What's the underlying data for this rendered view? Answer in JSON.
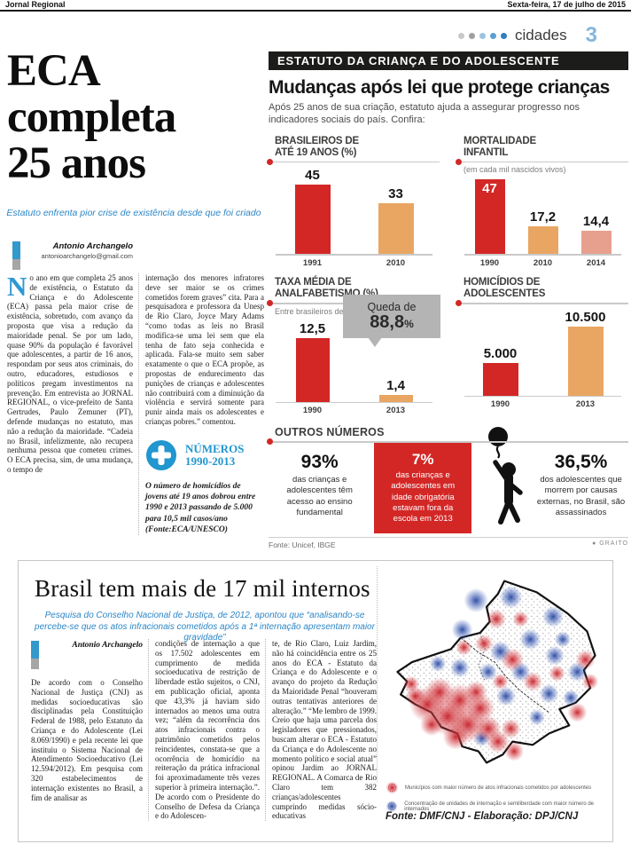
{
  "colors": {
    "red": "#d32726",
    "tan": "#e9a663",
    "salmon": "#e7a08d",
    "blue": "#2196cf",
    "deck_blue": "#2d86c6",
    "gray_callout": "#b5b4b4",
    "black_bar": "#1c1c1a"
  },
  "page": {
    "masthead": "Jornal Regional",
    "date": "Sexta-feira, 17 de julho de 2015",
    "section": "cidades",
    "page_number": "3"
  },
  "article1": {
    "headline_lines": [
      "ECA",
      "completa",
      "25 anos"
    ],
    "deck": "Estatuto enfrenta pior crise de existência desde que foi criado",
    "byline": "Antonio Archangelo",
    "email": "antonioarchangelo@gmail.com",
    "dropcap": "N",
    "col1": "o ano em que completa 25 anos de existência, o Estatuto da Criança e do Adolescente (ECA) passa pela maior crise de existência, sobretudo, com avanço da proposta que visa a redução da maioridade penal. Se por um lado, quase 90% da população é favorável que adolescentes, a partir de 16 anos, respondam por seus atos criminais, do outro, educadores, estudiosos e políticos pregam investimentos na prevenção. Em entrevista ao JORNAL REGIONAL, o vice-prefeito de Santa Gertrudes, Paulo Zemuner (PT), defende mudanças no estatuto, mas não a redução da maioridade. “Cadeia no Brasil, infelizmente, não recupera nenhuma pessoa que cometeu crimes. O ECA precisa, sim, de uma mudança, o tempo de",
    "col2": "internação dos menores infratores deve ser maior se os crimes cometidos forem graves” cita. Para a pesquisadora e professora da Unesp de Rio Claro, Joyce Mary Adams “como todas as leis no Brasil modifica-se uma lei sem que ela tenha de fato seja conhecida e aplicada. Fala-se muito sem saber exatamente o que o ECA propõe, as propostas de endurecimento das punições de crianças e adolescentes não contribuirá com a diminuição da violência e servirá somente para punir ainda mais os adolescentes e crianças pobres.” comentou.",
    "numbers_label": "NÚMEROS",
    "numbers_years": "1990-2013",
    "numbers_note": "O número de homicídios de jovens até 19 anos dobrou entre 1990 e 2013 passando de 5.000 para 10,5 mil casos/ano (Fonte:ECA/UNESCO)"
  },
  "infographic": {
    "kicker": "ESTATUTO DA CRIANÇA E DO ADOLESCENTE",
    "title": "Mudanças após lei que protege crianças",
    "subtitle": "Após 25 anos de sua criação, estatuto ajuda a assegurar progresso nos indicadores sociais do país. Confira:",
    "outros_title": "OUTROS NÚMEROS",
    "stats": [
      {
        "value": "93%",
        "text": "das crianças e adolescentes têm acesso ao ensino fundamental"
      },
      {
        "value": "7%",
        "text": "das crianças e adolescentes em idade obrigatória estavam fora da escola em 2013"
      },
      {
        "value": "36,5%",
        "text": "dos adolescentes que morrem por causas externas, no Brasil, são assassinados"
      }
    ],
    "source": "Fonte: Unicef, IBGE",
    "credit": "GRAITO"
  },
  "chart_data": [
    {
      "type": "bar",
      "title": "BRASILEIROS DE\nATÉ 19 ANOS (%)",
      "note": "",
      "categories": [
        "1991",
        "2010"
      ],
      "values": [
        45,
        33
      ],
      "labels": [
        "45",
        "33"
      ],
      "bar_colors": [
        "red",
        "tan"
      ],
      "label_inside": [
        false,
        false
      ],
      "ylim": [
        0,
        45
      ],
      "grid": false,
      "legend": "none"
    },
    {
      "type": "bar",
      "title": "MORTALIDADE\nINFANTIL",
      "note": "(em cada mil nascidos vivos)",
      "categories": [
        "1990",
        "2010",
        "2014"
      ],
      "values": [
        47,
        17.2,
        14.4
      ],
      "labels": [
        "47",
        "17,2",
        "14,4"
      ],
      "bar_colors": [
        "red",
        "tan",
        "salmon"
      ],
      "label_inside": [
        true,
        false,
        false
      ],
      "ylim": [
        0,
        47
      ],
      "grid": false,
      "legend": "none"
    },
    {
      "type": "bar",
      "title": "TAXA MÉDIA DE\nANALFABETISMO (%)",
      "note": "Entre brasileiros de 10 a 18 anos",
      "categories": [
        "1990",
        "2013"
      ],
      "values": [
        12.5,
        1.4
      ],
      "labels": [
        "12,5",
        "1,4"
      ],
      "bar_colors": [
        "red",
        "tan"
      ],
      "label_inside": [
        false,
        false
      ],
      "ylim": [
        0,
        12.5
      ],
      "grid": false,
      "legend": "none",
      "annotation": {
        "line1": "Queda de",
        "value": "88,8",
        "pct": "%"
      }
    },
    {
      "type": "bar",
      "title": "HOMICÍDIOS DE\nADOLESCENTES",
      "note": "",
      "categories": [
        "1990",
        "2013"
      ],
      "values": [
        5000,
        10500
      ],
      "labels": [
        "5.000",
        "10.500"
      ],
      "bar_colors": [
        "red",
        "tan"
      ],
      "label_inside": [
        false,
        false
      ],
      "ylim": [
        0,
        10500
      ],
      "grid": false,
      "legend": "none"
    }
  ],
  "article2": {
    "title": "Brasil tem mais de 17 mil internos",
    "deck": "Pesquisa do Conselho Nacional de Justiça, de 2012, apontou que “analisando-se percebe-se que os atos infracionais cometidos após a 1ª internação apresentam maior gravidade”",
    "byline": "Antonio Archangelo",
    "col1": "De acordo com o Conselho Nacional de Justiça (CNJ) as medidas socioeducativas são disciplinadas pela Constituição Federal de 1988, pelo Estatuto da Criança e do Adolescente (Lei 8.069/1990) e pela recente lei que instituiu o Sistema Nacional de Atendimento Socioeducativo (Lei 12.594/2012). Em pesquisa com 320 estabelecimentos de internação existentes no Brasil, a fim de analisar as",
    "col2": "condições de internação a que os 17.502 adolescentes em cumprimento de medida socioeducativa de restrição de liberdade estão sujeitos, o CNJ, em publicação oficial, aponta que 43,3% já haviam sido internados ao menos uma outra vez; “além da recorrência dos atos infracionais contra o patrimônio cometidos pelos reincidentes, constata-se que a ocorrência de homicídio na reiteração da prática infracional foi aproximadamente três vezes superior à primeira internação.”. De acordo com o Presidente do Conselho de Defesa da Criança e do Adolescen-",
    "col3": "te, de Rio Claro, Luiz Jardim, não há coincidência entre os 25 anos do ECA - Estatuto da Criança e do Adolescente e o avanço do projeto da Redução da Maioridade Penal “houveram outras tentativas anteriores de alteração.” “Me lembro de 1999. Creio que haja uma parcela dos legisladores que pressionados, buscam alterar o ECA - Estatuto da Criança e do Adolescente no momento político e social atual” opinou Jardim ao JORNAL REGIONAL. A Comarca de Rio Claro tem 382 crianças/adolescentes cumprindo medidas sócio-educativas"
  },
  "map": {
    "legend": [
      {
        "text": "Municípios com maior número de atos infracionais cometidos por adolescentes"
      },
      {
        "text": "Concentração de unidades de internação e semiliberdade com maior número de internados"
      }
    ],
    "source": "Fonte: DMF/CNJ - Elaboração: DPJ/CNJ"
  }
}
